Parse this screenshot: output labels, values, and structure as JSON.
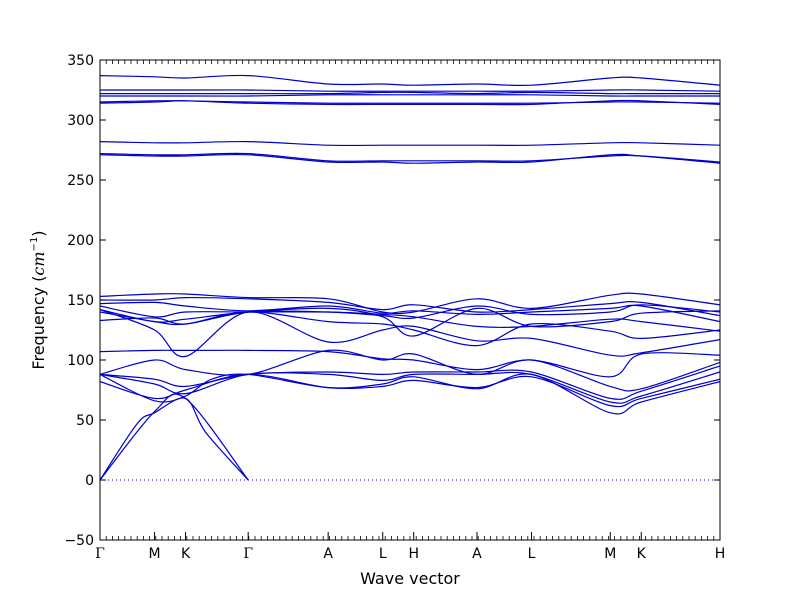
{
  "chart_data": {
    "type": "line",
    "xlabel": "Wave vector",
    "ylabel_text": "Frequency (",
    "ylabel_unit": "cm",
    "ylabel_exp": "−1",
    "ylabel_close": ")",
    "ylim": [
      -50,
      350
    ],
    "yticks": [
      -50,
      0,
      50,
      100,
      150,
      200,
      250,
      300,
      350
    ],
    "xlim": [
      0,
      100
    ],
    "high_symmetry_points": [
      {
        "label": "Γ",
        "x": 0
      },
      {
        "label": "M",
        "x": 8.8
      },
      {
        "label": "K",
        "x": 13.8
      },
      {
        "label": "Γ",
        "x": 23.9
      },
      {
        "label": "A",
        "x": 36.8
      },
      {
        "label": "L",
        "x": 45.6
      },
      {
        "label": "H",
        "x": 50.6
      },
      {
        "label": "A",
        "x": 60.8
      },
      {
        "label": "L",
        "x": 69.6
      },
      {
        "label": "M",
        "x": 82.3
      },
      {
        "label": "K",
        "x": 87.3
      },
      {
        "label": "H",
        "x": 100
      }
    ],
    "zero_line": {
      "y": 0,
      "style": "dotted",
      "color": "#0000ff"
    },
    "line_color": "#0000cc",
    "series": [
      {
        "x": [
          0,
          8.8,
          13.8,
          23.9
        ],
        "y": [
          0,
          57,
          68,
          0
        ]
      },
      {
        "x": [
          0,
          6,
          8.8,
          13.8,
          17,
          23.9
        ],
        "y": [
          0,
          47,
          56,
          68,
          40,
          0
        ]
      },
      {
        "x": [
          0,
          8.8,
          13.8,
          18,
          23.9,
          36.8,
          45.6,
          50.6,
          60.8,
          69.6,
          82.3,
          87.3,
          100
        ],
        "y": [
          88,
          66,
          70,
          84,
          88,
          77,
          80,
          86,
          76,
          88,
          56,
          65,
          82
        ]
      },
      {
        "x": [
          0,
          8.8,
          13.8,
          23.9,
          36.8,
          45.6,
          50.6,
          60.8,
          69.6,
          82.3,
          87.3,
          100
        ],
        "y": [
          82,
          68,
          75,
          88,
          77,
          78,
          83,
          77,
          86,
          62,
          68,
          84
        ]
      },
      {
        "x": [
          0,
          8.8,
          13.8,
          23.9,
          36.8,
          45.6,
          50.6,
          60.8,
          69.6,
          82.3,
          87.3,
          100
        ],
        "y": [
          88,
          80,
          72,
          88,
          88,
          83,
          88,
          88,
          88,
          65,
          70,
          90
        ]
      },
      {
        "x": [
          0,
          8.8,
          13.8,
          23.9,
          36.8,
          45.6,
          50.6,
          60.8,
          69.6,
          82.3,
          87.3,
          100
        ],
        "y": [
          88,
          84,
          78,
          88,
          90,
          88,
          90,
          90,
          90,
          68,
          74,
          95
        ]
      },
      {
        "x": [
          0,
          8.8,
          13.8,
          23.9,
          36.8,
          45.6,
          50.6,
          60.8,
          69.6,
          82.3,
          87.3,
          100
        ],
        "y": [
          88,
          100,
          92,
          88,
          108,
          100,
          105,
          88,
          100,
          78,
          76,
          98
        ]
      },
      {
        "x": [
          0,
          8.8,
          13.8,
          23.9,
          36.8,
          45.6,
          50.6,
          60.8,
          69.6,
          82.3,
          87.3,
          100
        ],
        "y": [
          107,
          108,
          108,
          108,
          107,
          101,
          100,
          92,
          100,
          86,
          105,
          104
        ]
      },
      {
        "x": [
          0,
          8.8,
          13.8,
          23.9,
          36.8,
          45.6,
          50.6,
          60.8,
          69.6,
          82.3,
          87.3,
          100
        ],
        "y": [
          142,
          125,
          103,
          140,
          115,
          125,
          128,
          116,
          118,
          104,
          106,
          117
        ]
      },
      {
        "x": [
          0,
          8.8,
          13.8,
          23.9,
          36.8,
          45.6,
          50.6,
          60.8,
          69.6,
          82.3,
          87.3,
          100
        ],
        "y": [
          140,
          132,
          130,
          140,
          132,
          130,
          125,
          112,
          130,
          124,
          118,
          125
        ]
      },
      {
        "x": [
          0,
          8.8,
          13.8,
          23.9,
          36.8,
          45.6,
          50.6,
          60.8,
          69.6,
          82.3,
          87.3,
          100
        ],
        "y": [
          145,
          136,
          140,
          140,
          140,
          138,
          136,
          128,
          128,
          134,
          132,
          124
        ]
      },
      {
        "x": [
          0,
          8.8,
          13.8,
          23.9,
          36.8,
          45.6,
          50.6,
          60.8,
          69.6,
          82.3,
          87.3,
          100
        ],
        "y": [
          147,
          148,
          145,
          141,
          145,
          139,
          141,
          138,
          140,
          143,
          145,
          132
        ]
      },
      {
        "x": [
          0,
          8.8,
          13.8,
          23.9,
          36.8,
          45.6,
          50.6,
          60.8,
          69.6,
          82.3,
          87.3,
          100
        ],
        "y": [
          150,
          150,
          152,
          151,
          148,
          142,
          146,
          140,
          142,
          147,
          148,
          137
        ]
      },
      {
        "x": [
          0,
          8.8,
          13.8,
          23.9,
          36.8,
          45.6,
          50.6,
          60.8,
          69.6,
          82.3,
          87.3,
          100
        ],
        "y": [
          153,
          155,
          155,
          152,
          151,
          140,
          140,
          151,
          143,
          154,
          155,
          146
        ]
      },
      {
        "x": [
          0,
          8.8,
          13.8,
          23.9,
          36.8,
          45.6,
          50.6,
          60.8,
          69.6,
          82.3,
          87.3,
          100
        ],
        "y": [
          133,
          135,
          130,
          140,
          140,
          137,
          135,
          145,
          138,
          140,
          146,
          140
        ]
      },
      {
        "x": [
          0,
          8.8,
          13.8,
          23.9,
          36.8,
          45.6,
          50.6,
          60.8,
          69.6,
          82.3,
          87.3,
          100
        ],
        "y": [
          142,
          132,
          134,
          140,
          143,
          136,
          120,
          143,
          128,
          132,
          139,
          141
        ]
      },
      {
        "x": [
          0,
          8.8,
          13.8,
          23.9,
          36.8,
          45.6,
          50.6,
          60.8,
          69.6,
          82.3,
          87.3,
          100
        ],
        "y": [
          271,
          270,
          270,
          271,
          265,
          265,
          264,
          265,
          265,
          271,
          270,
          264
        ]
      },
      {
        "x": [
          0,
          8.8,
          13.8,
          23.9,
          36.8,
          45.6,
          50.6,
          60.8,
          69.6,
          82.3,
          87.3,
          100
        ],
        "y": [
          272,
          271,
          271,
          272,
          266,
          266,
          266,
          266,
          266,
          270,
          270,
          265
        ]
      },
      {
        "x": [
          0,
          8.8,
          13.8,
          23.9,
          36.8,
          45.6,
          50.6,
          60.8,
          69.6,
          82.3,
          87.3,
          100
        ],
        "y": [
          282,
          281,
          281,
          282,
          279,
          279,
          279,
          279,
          279,
          281,
          281,
          279
        ]
      },
      {
        "x": [
          0,
          8.8,
          13.8,
          23.9,
          36.8,
          45.6,
          50.6,
          60.8,
          69.6,
          82.3,
          87.3,
          100
        ],
        "y": [
          314,
          315,
          316,
          314,
          313,
          313,
          313,
          313,
          313,
          316,
          316,
          313
        ]
      },
      {
        "x": [
          0,
          8.8,
          13.8,
          23.9,
          36.8,
          45.6,
          50.6,
          60.8,
          69.6,
          82.3,
          87.3,
          100
        ],
        "y": [
          315,
          316,
          316,
          315,
          314,
          314,
          314,
          314,
          314,
          315,
          315,
          314
        ]
      },
      {
        "x": [
          0,
          8.8,
          13.8,
          23.9,
          36.8,
          45.6,
          50.6,
          60.8,
          69.6,
          82.3,
          87.3,
          100
        ],
        "y": [
          320,
          320,
          320,
          320,
          321,
          321,
          321,
          321,
          321,
          320,
          320,
          320
        ]
      },
      {
        "x": [
          0,
          8.8,
          13.8,
          23.9,
          36.8,
          45.6,
          50.6,
          60.8,
          69.6,
          82.3,
          87.3,
          100
        ],
        "y": [
          322,
          322,
          322,
          322,
          322,
          323,
          323,
          322,
          323,
          322,
          322,
          322
        ]
      },
      {
        "x": [
          0,
          8.8,
          13.8,
          23.9,
          36.8,
          45.6,
          50.6,
          60.8,
          69.6,
          82.3,
          87.3,
          100
        ],
        "y": [
          325,
          325,
          325,
          325,
          324,
          324,
          324,
          324,
          324,
          325,
          325,
          324
        ]
      },
      {
        "x": [
          0,
          8.8,
          13.8,
          23.9,
          36.8,
          45.6,
          50.6,
          60.8,
          69.6,
          82.3,
          87.3,
          100
        ],
        "y": [
          337,
          336,
          335,
          337,
          330,
          330,
          329,
          330,
          329,
          335,
          335,
          329
        ]
      }
    ]
  }
}
